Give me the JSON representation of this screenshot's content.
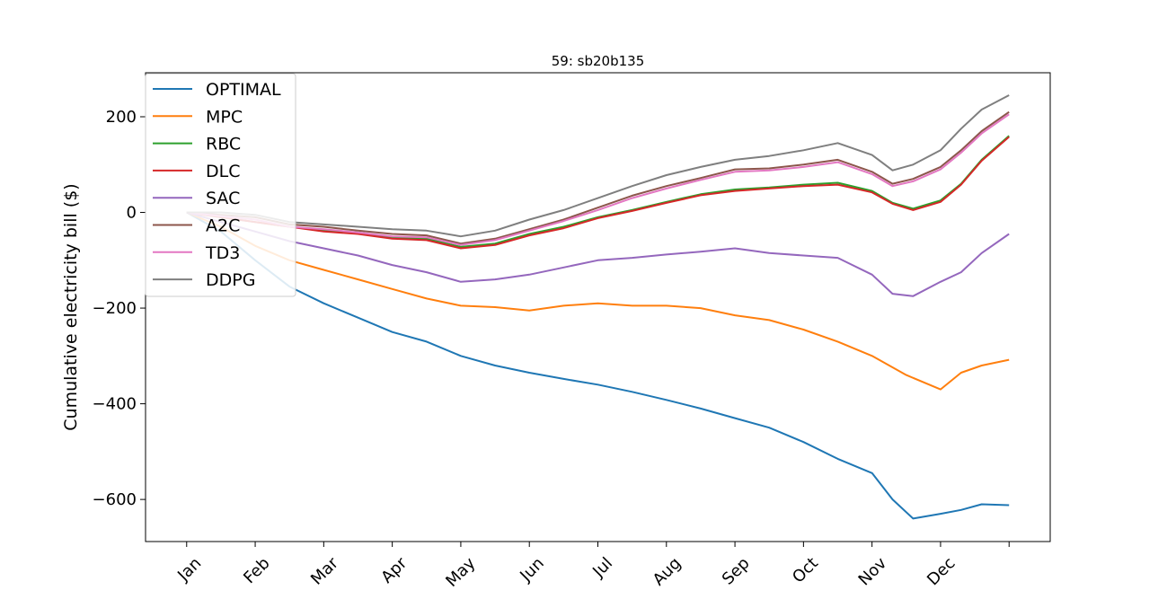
{
  "chart_data": {
    "type": "line",
    "title": "59: sb20b135",
    "xlabel": "",
    "ylabel": "Cumulative electricity bill ($)",
    "xlim": [
      -0.6,
      12.6
    ],
    "ylim": [
      -688,
      292
    ],
    "x_ticks": [
      0,
      1,
      2,
      3,
      4,
      5,
      6,
      7,
      8,
      9,
      10,
      11,
      12
    ],
    "x_tick_labels": [
      "Jan",
      "Feb",
      "Mar",
      "Apr",
      "May",
      "Jun",
      "Jul",
      "Aug",
      "Sep",
      "Oct",
      "Nov",
      "Dec",
      ""
    ],
    "y_ticks": [
      -600,
      -400,
      -200,
      0,
      200
    ],
    "y_tick_labels": [
      "−600",
      "−400",
      "−200",
      "0",
      "200"
    ],
    "legend_position": "upper-left",
    "grid": false,
    "series": [
      {
        "name": "OPTIMAL",
        "color": "#1f77b4",
        "x": [
          0,
          0.5,
          1,
          1.5,
          2,
          2.5,
          3,
          3.5,
          4,
          4.5,
          5,
          5.5,
          6,
          6.5,
          7,
          7.5,
          8,
          8.5,
          9,
          9.5,
          10,
          10.3,
          10.6,
          11,
          11.3,
          11.6,
          12
        ],
        "y": [
          0,
          -40,
          -100,
          -155,
          -190,
          -220,
          -250,
          -270,
          -300,
          -320,
          -335,
          -348,
          -360,
          -375,
          -392,
          -410,
          -430,
          -450,
          -480,
          -515,
          -545,
          -600,
          -640,
          -630,
          -622,
          -610,
          -612
        ]
      },
      {
        "name": "MPC",
        "color": "#ff7f0e",
        "x": [
          0,
          0.5,
          1,
          1.5,
          2,
          2.5,
          3,
          3.5,
          4,
          4.5,
          5,
          5.5,
          6,
          6.5,
          7,
          7.5,
          8,
          8.5,
          9,
          9.5,
          10,
          10.5,
          11,
          11.3,
          11.6,
          12
        ],
        "y": [
          0,
          -30,
          -70,
          -100,
          -120,
          -140,
          -160,
          -180,
          -195,
          -198,
          -205,
          -195,
          -190,
          -195,
          -195,
          -200,
          -215,
          -225,
          -245,
          -270,
          -300,
          -340,
          -370,
          -335,
          -320,
          -308
        ]
      },
      {
        "name": "RBC",
        "color": "#2ca02c",
        "x": [
          0,
          0.5,
          1,
          1.5,
          2,
          2.5,
          3,
          3.5,
          4,
          4.5,
          5,
          5.5,
          6,
          6.5,
          7,
          7.5,
          8,
          8.5,
          9,
          9.5,
          10,
          10.3,
          10.6,
          11,
          11.3,
          11.6,
          12
        ],
        "y": [
          0,
          -10,
          -20,
          -30,
          -38,
          -42,
          -52,
          -55,
          -72,
          -65,
          -45,
          -30,
          -10,
          5,
          22,
          38,
          48,
          52,
          58,
          62,
          45,
          20,
          8,
          25,
          60,
          110,
          160
        ]
      },
      {
        "name": "DLC",
        "color": "#d62728",
        "x": [
          0,
          0.5,
          1,
          1.5,
          2,
          2.5,
          3,
          3.5,
          4,
          4.5,
          5,
          5.5,
          6,
          6.5,
          7,
          7.5,
          8,
          8.5,
          9,
          9.5,
          10,
          10.3,
          10.6,
          11,
          11.3,
          11.6,
          12
        ],
        "y": [
          0,
          -10,
          -20,
          -30,
          -40,
          -45,
          -55,
          -58,
          -75,
          -68,
          -48,
          -33,
          -12,
          3,
          20,
          36,
          45,
          50,
          55,
          58,
          42,
          18,
          5,
          22,
          58,
          108,
          158
        ]
      },
      {
        "name": "SAC",
        "color": "#9467bd",
        "x": [
          0,
          0.5,
          1,
          1.5,
          2,
          2.5,
          3,
          3.5,
          4,
          4.5,
          5,
          5.5,
          6,
          6.5,
          7,
          7.5,
          8,
          8.5,
          9,
          9.5,
          10,
          10.3,
          10.6,
          11,
          11.3,
          11.6,
          12
        ],
        "y": [
          0,
          -20,
          -40,
          -60,
          -75,
          -90,
          -110,
          -125,
          -145,
          -140,
          -130,
          -115,
          -100,
          -95,
          -88,
          -82,
          -75,
          -85,
          -90,
          -95,
          -130,
          -170,
          -175,
          -145,
          -125,
          -85,
          -45
        ]
      },
      {
        "name": "A2C",
        "color": "#8c564b",
        "x": [
          0,
          0.5,
          1,
          1.5,
          2,
          2.5,
          3,
          3.5,
          4,
          4.5,
          5,
          5.5,
          6,
          6.5,
          7,
          7.5,
          8,
          8.5,
          9,
          9.5,
          10,
          10.3,
          10.6,
          11,
          11.3,
          11.6,
          12
        ],
        "y": [
          0,
          -5,
          -10,
          -25,
          -30,
          -38,
          -45,
          -48,
          -65,
          -55,
          -35,
          -15,
          10,
          35,
          55,
          72,
          90,
          92,
          100,
          110,
          85,
          60,
          70,
          95,
          130,
          170,
          210
        ]
      },
      {
        "name": "TD3",
        "color": "#e377c2",
        "x": [
          0,
          0.5,
          1,
          1.5,
          2,
          2.5,
          3,
          3.5,
          4,
          4.5,
          5,
          5.5,
          6,
          6.5,
          7,
          7.5,
          8,
          8.5,
          9,
          9.5,
          10,
          10.3,
          10.6,
          11,
          11.3,
          11.6,
          12
        ],
        "y": [
          0,
          -8,
          -15,
          -30,
          -35,
          -42,
          -50,
          -52,
          -68,
          -58,
          -38,
          -18,
          5,
          30,
          50,
          68,
          85,
          88,
          95,
          105,
          80,
          55,
          65,
          90,
          125,
          165,
          205
        ]
      },
      {
        "name": "DDPG",
        "color": "#7f7f7f",
        "x": [
          0,
          0.5,
          1,
          1.5,
          2,
          2.5,
          3,
          3.5,
          4,
          4.5,
          5,
          5.5,
          6,
          6.5,
          7,
          7.5,
          8,
          8.5,
          9,
          9.5,
          10,
          10.3,
          10.6,
          11,
          11.3,
          11.6,
          12
        ],
        "y": [
          0,
          0,
          -5,
          -20,
          -25,
          -30,
          -35,
          -38,
          -50,
          -38,
          -15,
          5,
          30,
          55,
          78,
          95,
          110,
          118,
          130,
          145,
          120,
          88,
          100,
          130,
          175,
          215,
          245
        ]
      }
    ]
  }
}
